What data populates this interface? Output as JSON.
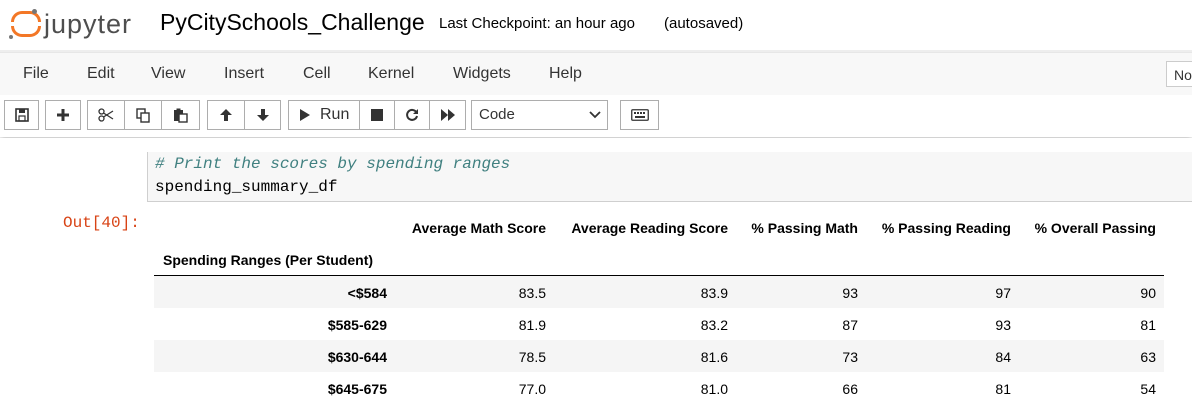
{
  "header": {
    "logo_text": "jupyter",
    "notebook_title": "PyCitySchools_Challenge",
    "checkpoint": "Last Checkpoint: an hour ago",
    "autosave": "(autosaved)",
    "logo_color": "#f37726"
  },
  "menubar": {
    "items": [
      "File",
      "Edit",
      "View",
      "Insert",
      "Cell",
      "Kernel",
      "Widgets",
      "Help"
    ],
    "kernel_indicator": "No"
  },
  "toolbar": {
    "buttons": [
      "save-icon",
      "plus-icon",
      "scissors-icon",
      "copy-icon",
      "paste-icon",
      "arrow-up-icon",
      "arrow-down-icon"
    ],
    "run_label": "Run",
    "more_buttons": [
      "stop-icon",
      "restart-icon",
      "fast-forward-icon"
    ],
    "cell_type": "Code",
    "keyboard": "keyboard-icon"
  },
  "cell": {
    "comment": "# Print the scores by spending ranges",
    "code": "spending_summary_df",
    "out_prompt": "Out[40]:"
  },
  "table": {
    "columns": [
      "Average Math Score",
      "Average Reading Score",
      "% Passing Math",
      "% Passing Reading",
      "% Overall Passing"
    ],
    "index_name": "Spending Ranges (Per Student)",
    "rows": [
      {
        "index": "<$584",
        "values": [
          "83.5",
          "83.9",
          "93",
          "97",
          "90"
        ]
      },
      {
        "index": "$585-629",
        "values": [
          "81.9",
          "83.2",
          "87",
          "93",
          "81"
        ]
      },
      {
        "index": "$630-644",
        "values": [
          "78.5",
          "81.6",
          "73",
          "84",
          "63"
        ]
      },
      {
        "index": "$645-675",
        "values": [
          "77.0",
          "81.0",
          "66",
          "81",
          "54"
        ]
      }
    ]
  }
}
